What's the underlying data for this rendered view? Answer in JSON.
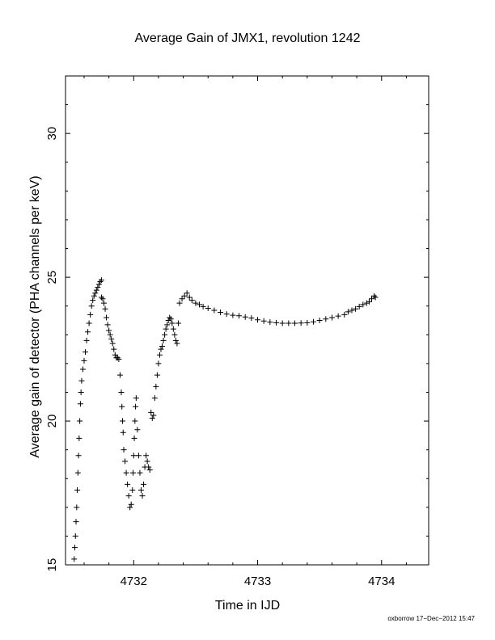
{
  "chart_data": {
    "type": "scatter",
    "title": "Average Gain of JMX1, revolution 1242",
    "xlabel": "Time in IJD",
    "ylabel": "Average gain of detector (PHA channels per keV)",
    "xlim": [
      4731.45,
      4734.38
    ],
    "ylim": [
      15,
      32
    ],
    "xticks": [
      4732,
      4733,
      4734
    ],
    "yticks": [
      15,
      20,
      25,
      30
    ],
    "grid": false,
    "marker": "+",
    "marker_color": "#000000",
    "series": [
      {
        "points": [
          [
            4731.52,
            15.2
          ],
          [
            4731.525,
            15.6
          ],
          [
            4731.53,
            16.0
          ],
          [
            4731.535,
            16.5
          ],
          [
            4731.54,
            17.0
          ],
          [
            4731.545,
            17.6
          ],
          [
            4731.55,
            18.2
          ],
          [
            4731.555,
            18.8
          ],
          [
            4731.56,
            19.4
          ],
          [
            4731.565,
            20.0
          ],
          [
            4731.57,
            20.6
          ],
          [
            4731.575,
            21.0
          ],
          [
            4731.58,
            21.4
          ],
          [
            4731.59,
            21.8
          ],
          [
            4731.6,
            22.1
          ],
          [
            4731.61,
            22.4
          ],
          [
            4731.62,
            22.8
          ],
          [
            4731.63,
            23.1
          ],
          [
            4731.64,
            23.4
          ],
          [
            4731.65,
            23.7
          ],
          [
            4731.66,
            24.0
          ],
          [
            4731.67,
            24.2
          ],
          [
            4731.68,
            24.35
          ],
          [
            4731.69,
            24.45
          ],
          [
            4731.7,
            24.55
          ],
          [
            4731.71,
            24.65
          ],
          [
            4731.72,
            24.75
          ],
          [
            4731.73,
            24.85
          ],
          [
            4731.74,
            24.9
          ],
          [
            4731.74,
            24.3
          ],
          [
            4731.75,
            24.25
          ],
          [
            4731.76,
            24.1
          ],
          [
            4731.77,
            23.9
          ],
          [
            4731.78,
            23.6
          ],
          [
            4731.79,
            23.35
          ],
          [
            4731.8,
            23.15
          ],
          [
            4731.81,
            23.0
          ],
          [
            4731.82,
            22.85
          ],
          [
            4731.83,
            22.7
          ],
          [
            4731.84,
            22.5
          ],
          [
            4731.85,
            22.3
          ],
          [
            4731.86,
            22.2
          ],
          [
            4731.87,
            22.2
          ],
          [
            4731.88,
            22.15
          ],
          [
            4731.89,
            21.6
          ],
          [
            4731.9,
            21.0
          ],
          [
            4731.905,
            20.5
          ],
          [
            4731.91,
            20.0
          ],
          [
            4731.915,
            19.6
          ],
          [
            4731.92,
            19.0
          ],
          [
            4731.93,
            18.6
          ],
          [
            4731.94,
            18.2
          ],
          [
            4731.95,
            17.8
          ],
          [
            4731.96,
            17.4
          ],
          [
            4731.97,
            17.0
          ],
          [
            4731.98,
            17.1
          ],
          [
            4731.99,
            17.6
          ],
          [
            4731.995,
            18.2
          ],
          [
            4732.0,
            18.8
          ],
          [
            4732.005,
            19.4
          ],
          [
            4732.01,
            20.0
          ],
          [
            4732.015,
            20.5
          ],
          [
            4732.02,
            20.8
          ],
          [
            4732.03,
            19.7
          ],
          [
            4732.04,
            18.8
          ],
          [
            4732.05,
            18.2
          ],
          [
            4732.06,
            17.6
          ],
          [
            4732.07,
            17.4
          ],
          [
            4732.08,
            17.8
          ],
          [
            4732.09,
            18.4
          ],
          [
            4732.1,
            18.8
          ],
          [
            4732.11,
            18.6
          ],
          [
            4732.12,
            18.4
          ],
          [
            4732.13,
            18.3
          ],
          [
            4732.14,
            20.3
          ],
          [
            4732.15,
            20.1
          ],
          [
            4732.16,
            20.2
          ],
          [
            4732.17,
            20.8
          ],
          [
            4732.18,
            21.2
          ],
          [
            4732.19,
            21.6
          ],
          [
            4732.2,
            22.0
          ],
          [
            4732.21,
            22.3
          ],
          [
            4732.22,
            22.5
          ],
          [
            4732.23,
            22.6
          ],
          [
            4732.24,
            22.8
          ],
          [
            4732.25,
            23.0
          ],
          [
            4732.26,
            23.2
          ],
          [
            4732.27,
            23.35
          ],
          [
            4732.28,
            23.5
          ],
          [
            4732.29,
            23.6
          ],
          [
            4732.3,
            23.55
          ],
          [
            4732.31,
            23.4
          ],
          [
            4732.32,
            23.2
          ],
          [
            4732.33,
            23.0
          ],
          [
            4732.34,
            22.8
          ],
          [
            4732.35,
            22.7
          ],
          [
            4732.36,
            23.4
          ],
          [
            4732.37,
            24.1
          ],
          [
            4732.39,
            24.25
          ],
          [
            4732.41,
            24.35
          ],
          [
            4732.43,
            24.45
          ],
          [
            4732.45,
            24.3
          ],
          [
            4732.47,
            24.2
          ],
          [
            4732.5,
            24.1
          ],
          [
            4732.53,
            24.05
          ],
          [
            4732.56,
            23.98
          ],
          [
            4732.6,
            23.92
          ],
          [
            4732.65,
            23.85
          ],
          [
            4732.7,
            23.78
          ],
          [
            4732.75,
            23.72
          ],
          [
            4732.8,
            23.68
          ],
          [
            4732.85,
            23.66
          ],
          [
            4732.9,
            23.62
          ],
          [
            4732.95,
            23.58
          ],
          [
            4733.0,
            23.52
          ],
          [
            4733.05,
            23.48
          ],
          [
            4733.1,
            23.44
          ],
          [
            4733.15,
            23.42
          ],
          [
            4733.2,
            23.4
          ],
          [
            4733.25,
            23.4
          ],
          [
            4733.3,
            23.4
          ],
          [
            4733.35,
            23.41
          ],
          [
            4733.4,
            23.42
          ],
          [
            4733.45,
            23.45
          ],
          [
            4733.5,
            23.5
          ],
          [
            4733.55,
            23.55
          ],
          [
            4733.6,
            23.6
          ],
          [
            4733.65,
            23.65
          ],
          [
            4733.7,
            23.7
          ],
          [
            4733.73,
            23.8
          ],
          [
            4733.76,
            23.85
          ],
          [
            4733.79,
            23.9
          ],
          [
            4733.82,
            23.98
          ],
          [
            4733.85,
            24.05
          ],
          [
            4733.88,
            24.1
          ],
          [
            4733.9,
            24.15
          ],
          [
            4733.92,
            24.25
          ],
          [
            4733.94,
            24.35
          ],
          [
            4733.95,
            24.3
          ]
        ]
      }
    ]
  },
  "footer": {
    "credit": "oxborrow 17−Dec−2012 15:47"
  }
}
